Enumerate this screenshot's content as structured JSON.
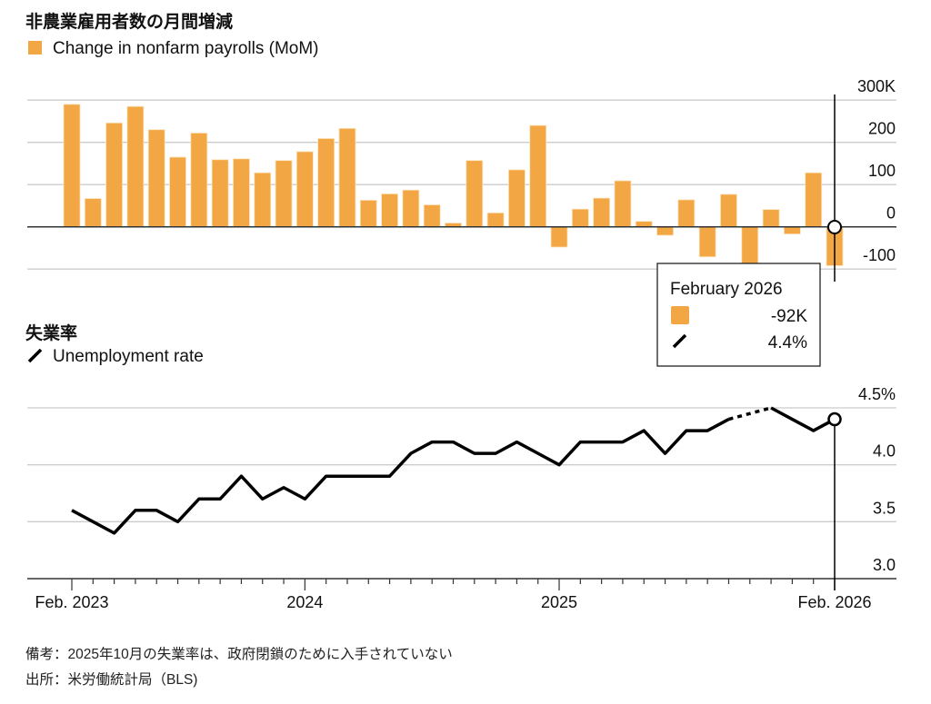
{
  "chart_data": [
    {
      "type": "bar",
      "title": "非農業雇用者数の月間増減",
      "legend": "Change in nonfarm payrolls (MoM)",
      "unit": "K",
      "ylim": [
        -100,
        300
      ],
      "yticks": [
        -100,
        0,
        100,
        200,
        300
      ],
      "ytick_labels": [
        "-100",
        "0",
        "100",
        "200",
        "300K"
      ],
      "color": "#f2a744",
      "months": [
        "2023-02",
        "2023-03",
        "2023-04",
        "2023-05",
        "2023-06",
        "2023-07",
        "2023-08",
        "2023-09",
        "2023-10",
        "2023-11",
        "2023-12",
        "2024-01",
        "2024-02",
        "2024-03",
        "2024-04",
        "2024-05",
        "2024-06",
        "2024-07",
        "2024-08",
        "2024-09",
        "2024-10",
        "2024-11",
        "2024-12",
        "2025-01",
        "2025-02",
        "2025-03",
        "2025-04",
        "2025-05",
        "2025-06",
        "2025-07",
        "2025-08",
        "2025-09",
        "2025-10",
        "2025-11",
        "2025-12",
        "2026-01",
        "2026-02"
      ],
      "values": [
        290,
        67,
        246,
        285,
        230,
        165,
        222,
        159,
        161,
        128,
        157,
        178,
        209,
        233,
        63,
        78,
        87,
        52,
        9,
        157,
        33,
        135,
        240,
        -48,
        42,
        68,
        109,
        13,
        -20,
        64,
        -71,
        77,
        -105,
        41,
        -17,
        128,
        -92
      ]
    },
    {
      "type": "line",
      "title": "失業率",
      "legend": "Unemployment rate",
      "unit": "%",
      "ylim": [
        3.0,
        4.5
      ],
      "yticks": [
        3.0,
        3.5,
        4.0,
        4.5
      ],
      "ytick_labels": [
        "3.0",
        "3.5",
        "4.0",
        "4.5%"
      ],
      "color": "#000000",
      "values": [
        3.6,
        3.5,
        3.4,
        3.6,
        3.6,
        3.5,
        3.7,
        3.7,
        3.9,
        3.7,
        3.8,
        3.7,
        3.9,
        3.9,
        3.9,
        3.9,
        4.1,
        4.2,
        4.2,
        4.1,
        4.1,
        4.2,
        4.1,
        4.0,
        4.2,
        4.2,
        4.2,
        4.3,
        4.1,
        4.3,
        4.3,
        4.4,
        null,
        4.5,
        4.4,
        4.3,
        4.4
      ],
      "missing_note": "dotted segment bridges missing Oct 2025"
    }
  ],
  "x_axis": {
    "labels": [
      {
        "index": 0,
        "text": "Feb. 2023"
      },
      {
        "index": 11,
        "text": "2024"
      },
      {
        "index": 23,
        "text": "2025"
      },
      {
        "index": 36,
        "text": "Feb. 2026"
      }
    ]
  },
  "tooltip": {
    "title": "February 2026",
    "payrolls": "-92K",
    "rate": "4.4%"
  },
  "notes": {
    "remark": "備考：2025年10月の失業率は、政府閉鎖のために入手されていない",
    "source": "出所：米労働統計局（BLS)"
  }
}
